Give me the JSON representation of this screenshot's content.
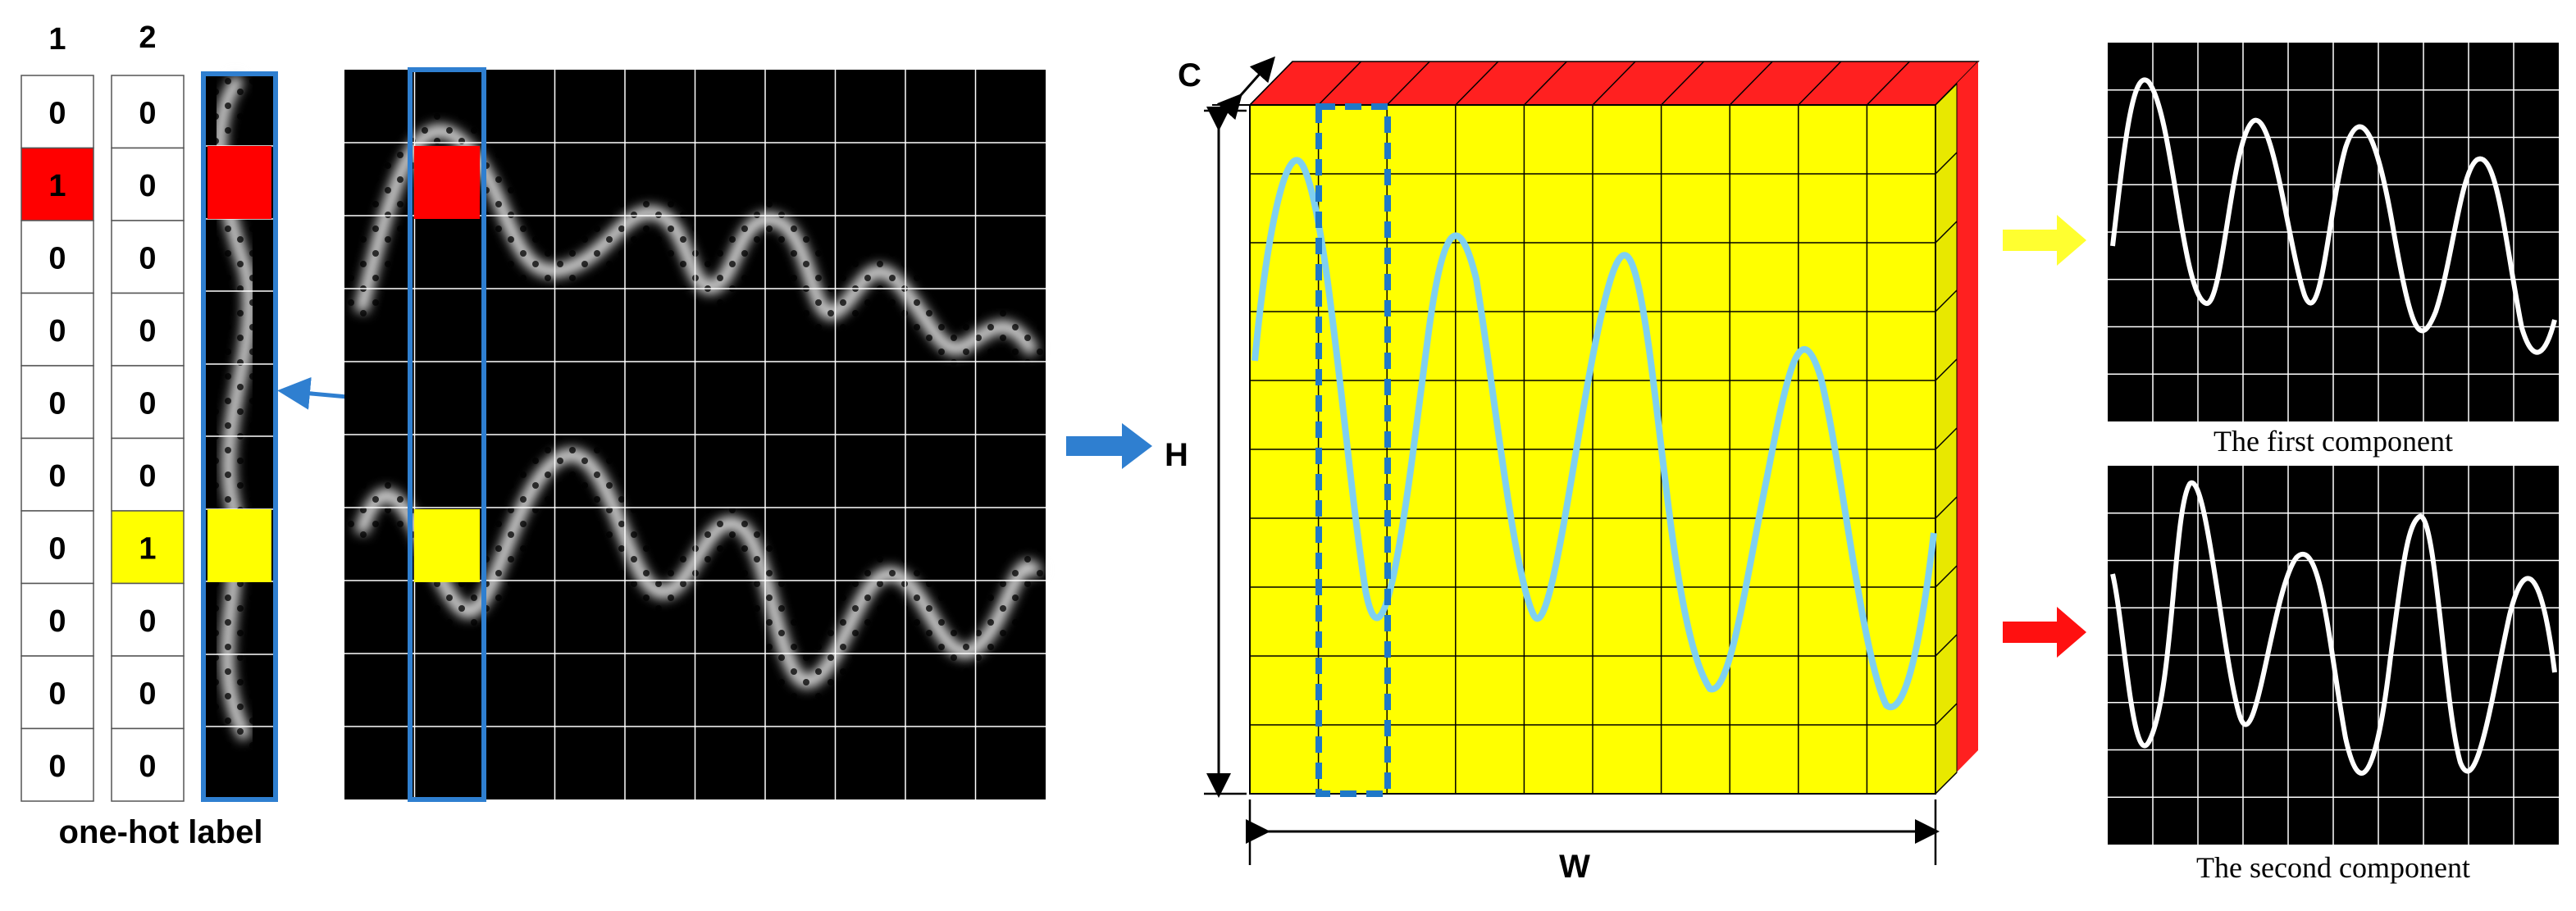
{
  "label_columns": {
    "headers": [
      "1",
      "2"
    ],
    "column1": [
      "0",
      "1",
      "0",
      "0",
      "0",
      "0",
      "0",
      "0",
      "0",
      "0"
    ],
    "column2": [
      "0",
      "0",
      "0",
      "0",
      "0",
      "0",
      "1",
      "0",
      "0",
      "0"
    ],
    "caption": "one-hot label"
  },
  "cube": {
    "height_label": "H",
    "width_label": "W",
    "depth_label": "C"
  },
  "outputs": {
    "first_caption": "The first component",
    "second_caption": "The second component"
  },
  "colors": {
    "first_component": "#ffff00",
    "second_component": "#ff0000",
    "selection_box": "#2f7fd0",
    "wave": "#7fd0f0"
  }
}
